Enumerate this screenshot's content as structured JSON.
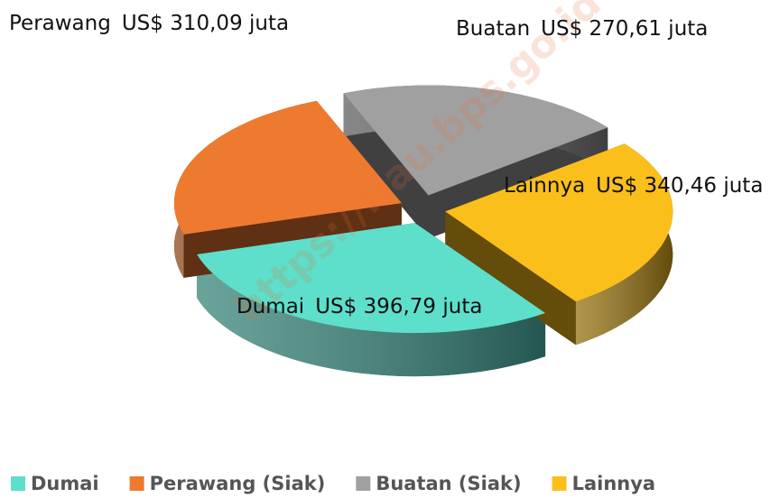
{
  "chart_data": {
    "type": "pie",
    "categories": [
      "Dumai",
      "Perawang (Siak)",
      "Buatan (Siak)",
      "Lainnya"
    ],
    "slice_labels": [
      "Dumai",
      "Perawang",
      "Buatan",
      "Lainnya"
    ],
    "values": [
      396.79,
      310.09,
      270.61,
      340.46
    ],
    "value_labels": [
      "US$ 396,79 juta",
      "US$ 310,09 juta",
      "US$ 270,61 juta",
      "US$ 340,46 juta"
    ],
    "colors": [
      "#5ddfcb",
      "#ee7a30",
      "#a0a0a0",
      "#fbbf1c"
    ],
    "watermark": "https://riau.bps.go.id",
    "legend": "bottom"
  }
}
